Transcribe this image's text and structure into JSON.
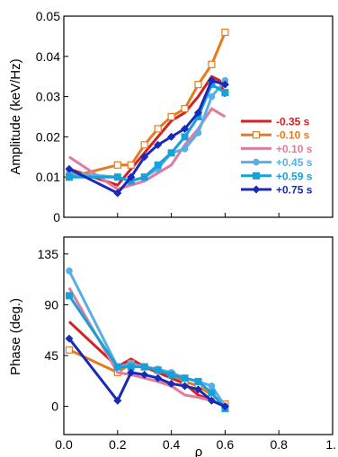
{
  "chart_data": [
    {
      "type": "line",
      "ylabel": "Amplitude (keV/Hz)",
      "ylim": [
        0,
        0.05
      ],
      "yticks": [
        "0",
        "0.01",
        "0.02",
        "0.03",
        "0.04",
        "0.05"
      ],
      "xlim": [
        0,
        1.0
      ],
      "legend_position": "right",
      "series": [
        {
          "name": "-0.35 s",
          "color": "#d42020",
          "marker": "none",
          "x": [
            0.02,
            0.2,
            0.25,
            0.3,
            0.35,
            0.4,
            0.45,
            0.5,
            0.55,
            0.58,
            0.6
          ],
          "y": [
            0.012,
            0.008,
            0.012,
            0.016,
            0.02,
            0.024,
            0.026,
            0.03,
            0.035,
            0.034,
            0.03
          ]
        },
        {
          "name": "-0.10 s",
          "color": "#e87a1a",
          "marker": "open-square",
          "x": [
            0.02,
            0.2,
            0.25,
            0.3,
            0.35,
            0.4,
            0.45,
            0.5,
            0.55,
            0.6
          ],
          "y": [
            0.01,
            0.013,
            0.013,
            0.018,
            0.022,
            0.025,
            0.027,
            0.033,
            0.038,
            0.046
          ]
        },
        {
          "name": "+0.10 s",
          "color": "#e07aa0",
          "marker": "none",
          "x": [
            0.02,
            0.2,
            0.25,
            0.3,
            0.35,
            0.4,
            0.45,
            0.5,
            0.55,
            0.6
          ],
          "y": [
            0.015,
            0.007,
            0.008,
            0.009,
            0.011,
            0.013,
            0.018,
            0.022,
            0.027,
            0.025
          ]
        },
        {
          "name": "+0.45 s",
          "color": "#5aaee8",
          "marker": "circle",
          "x": [
            0.02,
            0.2,
            0.25,
            0.3,
            0.35,
            0.4,
            0.45,
            0.5,
            0.55,
            0.6
          ],
          "y": [
            0.011,
            0.01,
            0.009,
            0.01,
            0.012,
            0.016,
            0.017,
            0.021,
            0.03,
            0.034
          ]
        },
        {
          "name": "+0.59 s",
          "color": "#18a0d8",
          "marker": "square",
          "x": [
            0.02,
            0.2,
            0.25,
            0.3,
            0.35,
            0.4,
            0.45,
            0.5,
            0.55,
            0.6
          ],
          "y": [
            0.01,
            0.01,
            0.009,
            0.01,
            0.013,
            0.016,
            0.02,
            0.025,
            0.033,
            0.031
          ]
        },
        {
          "name": "+0.75 s",
          "color": "#1a2ab8",
          "marker": "diamond",
          "x": [
            0.02,
            0.2,
            0.25,
            0.3,
            0.35,
            0.4,
            0.45,
            0.5,
            0.55,
            0.6
          ],
          "y": [
            0.012,
            0.006,
            0.01,
            0.015,
            0.018,
            0.02,
            0.022,
            0.026,
            0.034,
            0.033
          ]
        }
      ]
    },
    {
      "type": "line",
      "xlabel": "ρ",
      "ylabel": "Phase (deg.)",
      "ylim": [
        -25,
        150
      ],
      "yticks": [
        "0",
        "45",
        "90",
        "135"
      ],
      "xlim": [
        0,
        1.0
      ],
      "xticks": [
        "0.0",
        "0.2",
        "0.4",
        "0.6",
        "0.8",
        "1."
      ],
      "series": [
        {
          "name": "-0.35 s",
          "color": "#d42020",
          "marker": "none",
          "x": [
            0.02,
            0.2,
            0.25,
            0.3,
            0.35,
            0.4,
            0.45,
            0.5,
            0.55,
            0.6
          ],
          "y": [
            75,
            35,
            42,
            35,
            30,
            25,
            20,
            10,
            5,
            0
          ]
        },
        {
          "name": "-0.10 s",
          "color": "#e87a1a",
          "marker": "open-square",
          "x": [
            0.02,
            0.2,
            0.25,
            0.3,
            0.35,
            0.4,
            0.45,
            0.5,
            0.55,
            0.6
          ],
          "y": [
            50,
            30,
            38,
            35,
            32,
            28,
            22,
            18,
            10,
            2
          ]
        },
        {
          "name": "+0.10 s",
          "color": "#e07aa0",
          "marker": "none",
          "x": [
            0.02,
            0.2,
            0.25,
            0.3,
            0.35,
            0.4,
            0.45,
            0.5,
            0.55,
            0.6
          ],
          "y": [
            105,
            30,
            28,
            25,
            22,
            18,
            10,
            8,
            5,
            0
          ]
        },
        {
          "name": "+0.45 s",
          "color": "#5aaee8",
          "marker": "circle",
          "x": [
            0.02,
            0.2,
            0.25,
            0.3,
            0.35,
            0.4,
            0.45,
            0.5,
            0.55,
            0.6
          ],
          "y": [
            120,
            35,
            38,
            35,
            33,
            30,
            25,
            22,
            18,
            0
          ]
        },
        {
          "name": "+0.59 s",
          "color": "#18a0d8",
          "marker": "square",
          "x": [
            0.02,
            0.2,
            0.25,
            0.3,
            0.35,
            0.4,
            0.45,
            0.5,
            0.55,
            0.6
          ],
          "y": [
            98,
            35,
            35,
            35,
            32,
            28,
            25,
            22,
            12,
            -2
          ]
        },
        {
          "name": "+0.75 s",
          "color": "#1a2ab8",
          "marker": "diamond",
          "x": [
            0.02,
            0.2,
            0.25,
            0.3,
            0.35,
            0.4,
            0.45,
            0.5,
            0.55,
            0.6
          ],
          "y": [
            60,
            5,
            30,
            28,
            25,
            20,
            18,
            15,
            5,
            0
          ]
        }
      ]
    }
  ]
}
